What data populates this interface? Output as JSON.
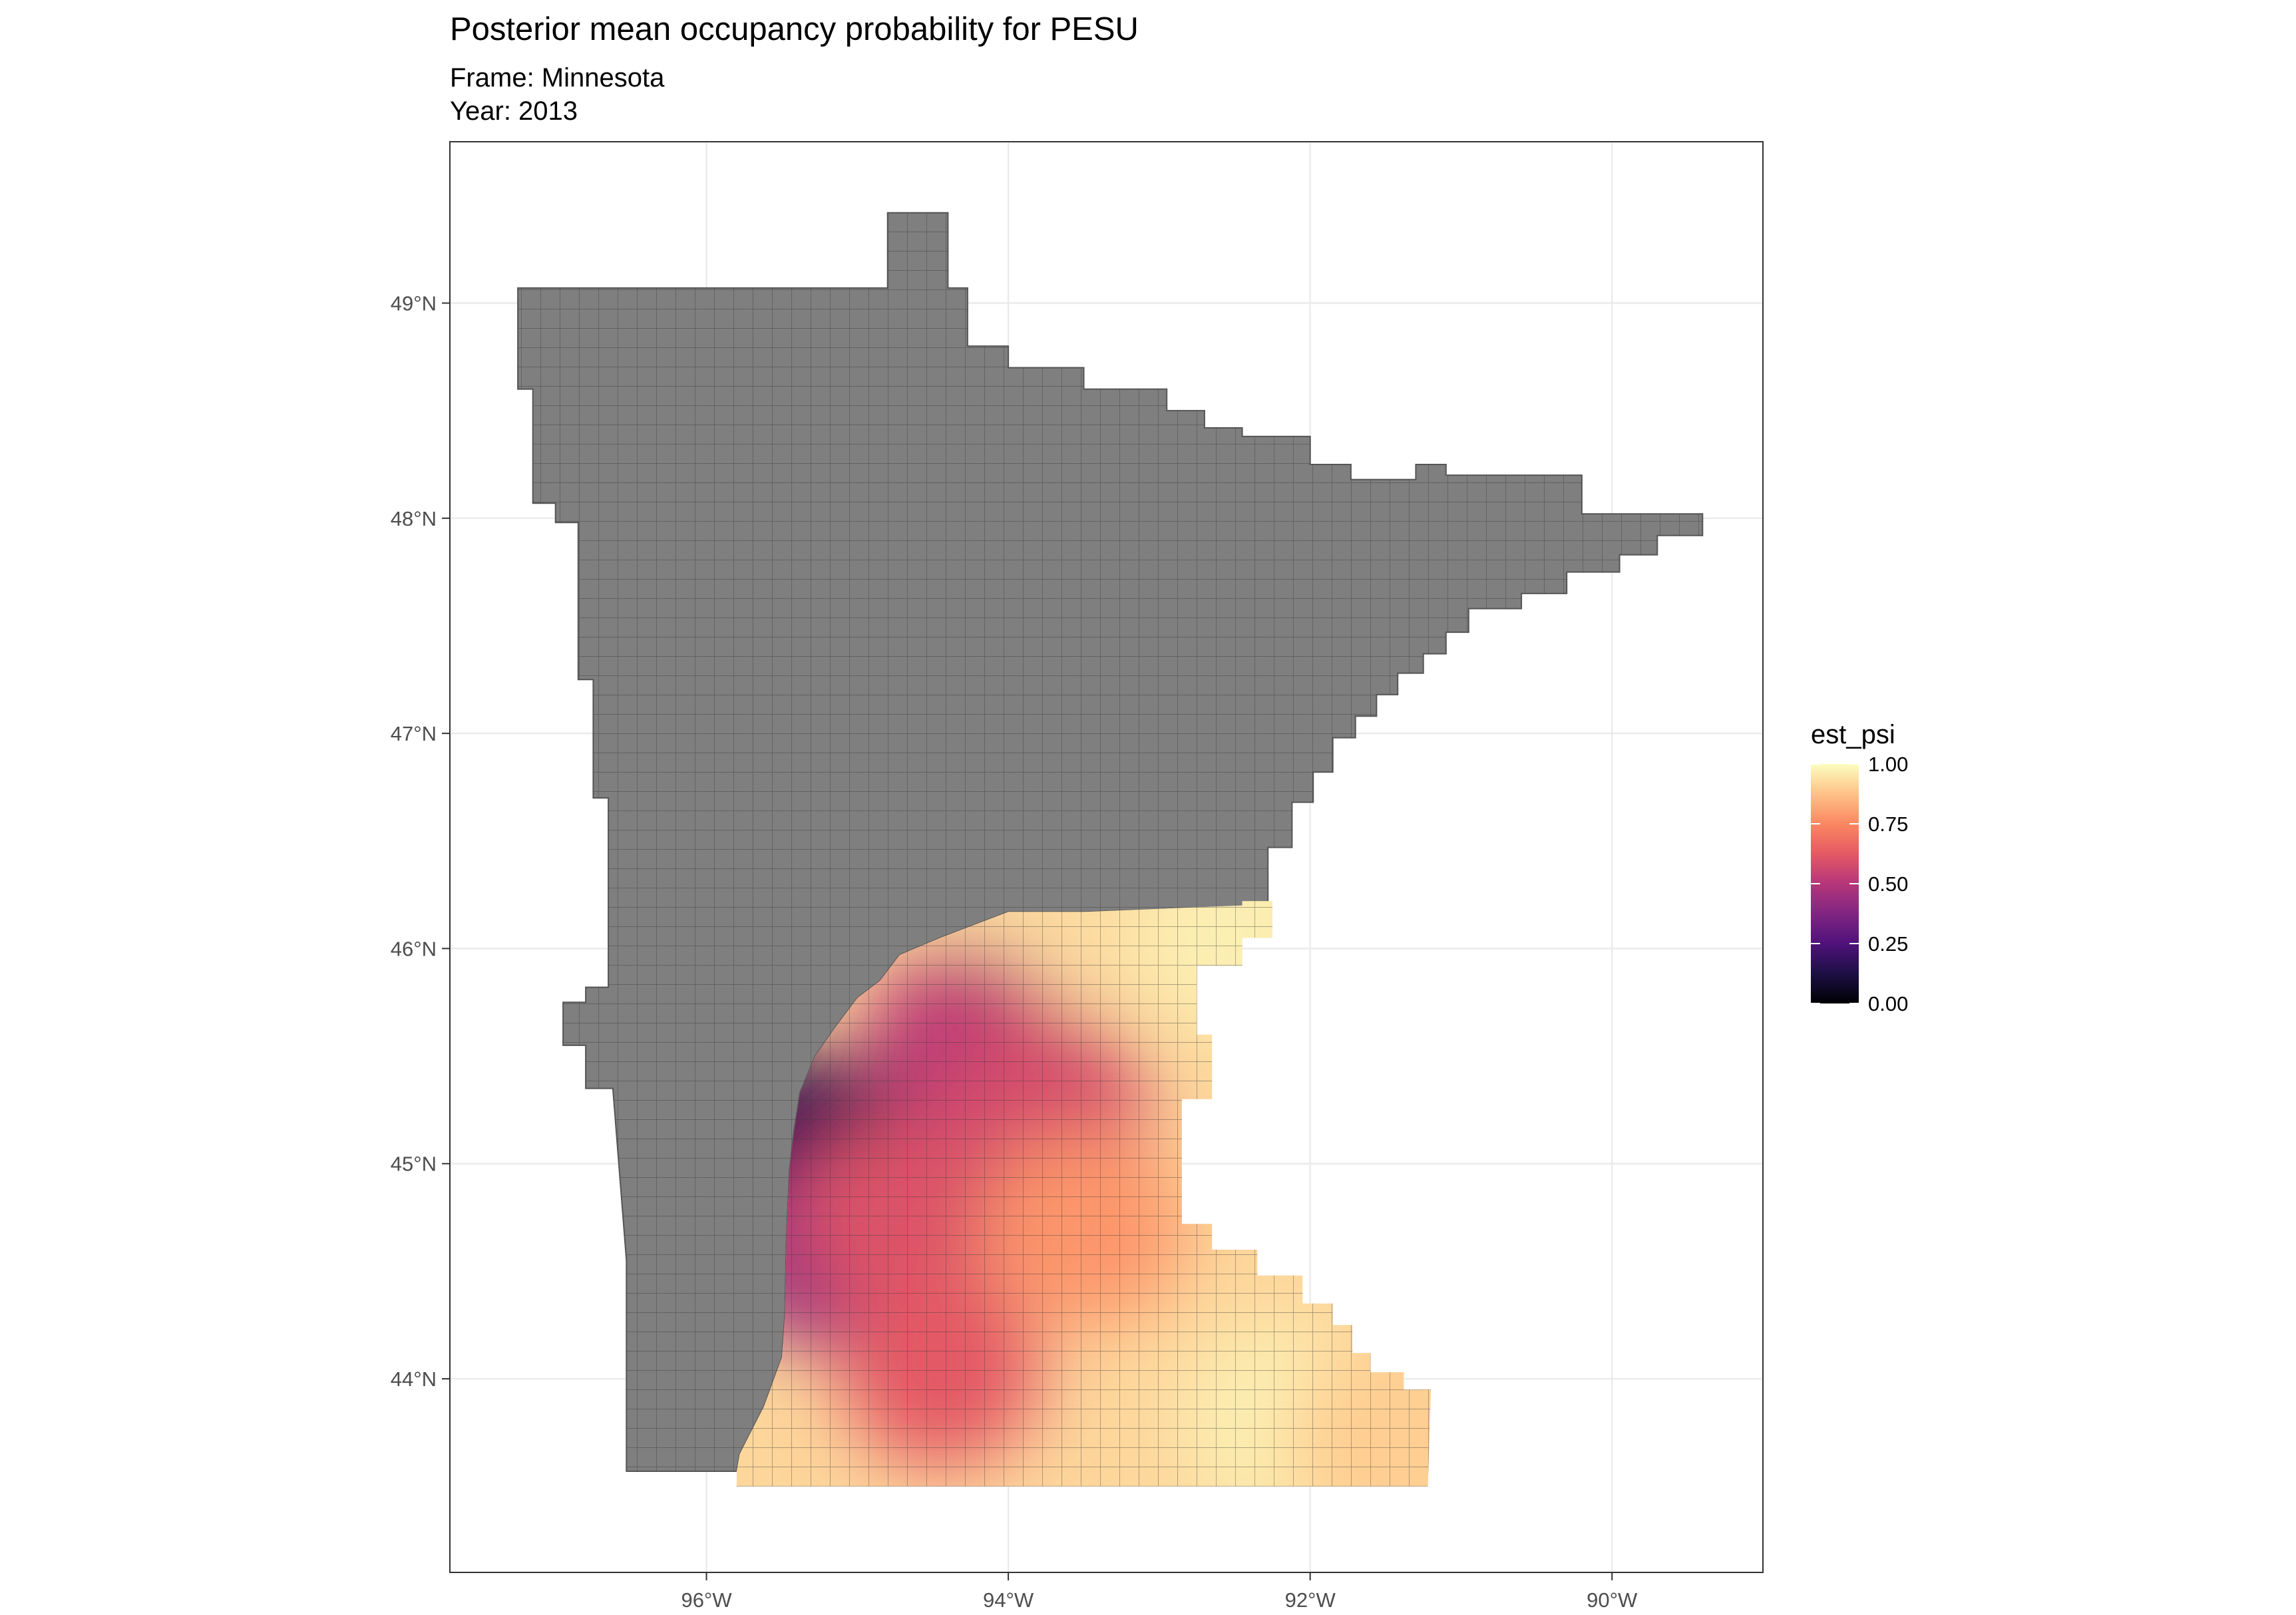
{
  "title": "Posterior mean occupancy probability for PESU",
  "subtitle_frame": "Frame: Minnesota",
  "subtitle_year": "Year: 2013",
  "chart_data": {
    "type": "map",
    "x_ticks": [
      {
        "value": -96,
        "label": "96°W"
      },
      {
        "value": -94,
        "label": "94°W"
      },
      {
        "value": -92,
        "label": "92°W"
      },
      {
        "value": -90,
        "label": "90°W"
      }
    ],
    "y_ticks": [
      {
        "value": 44,
        "label": "44°N"
      },
      {
        "value": 45,
        "label": "45°N"
      },
      {
        "value": 46,
        "label": "46°N"
      },
      {
        "value": 47,
        "label": "47°N"
      },
      {
        "value": 48,
        "label": "48°N"
      },
      {
        "value": 49,
        "label": "49°N"
      }
    ],
    "xlim": [
      -97.7,
      -89.0
    ],
    "ylim": [
      43.1,
      49.75
    ],
    "grid": true,
    "na_fill_color": "#7f7f7f",
    "colormap": "magma",
    "legend": {
      "title": "est_psi",
      "placement": "right",
      "ticks": [
        {
          "value": 1.0,
          "label": "1.00"
        },
        {
          "value": 0.75,
          "label": "0.75"
        },
        {
          "value": 0.5,
          "label": "0.50"
        },
        {
          "value": 0.25,
          "label": "0.25"
        },
        {
          "value": 0.0,
          "label": "0.00"
        }
      ]
    },
    "grey_region_no_estimate": [
      [
        -97.25,
        49.07
      ],
      [
        -94.8,
        49.07
      ],
      [
        -94.8,
        49.42
      ],
      [
        -94.4,
        49.42
      ],
      [
        -94.4,
        49.07
      ],
      [
        -94.27,
        49.07
      ],
      [
        -94.27,
        48.8
      ],
      [
        -94.0,
        48.8
      ],
      [
        -94.0,
        48.7
      ],
      [
        -93.5,
        48.7
      ],
      [
        -93.5,
        48.6
      ],
      [
        -92.95,
        48.6
      ],
      [
        -92.95,
        48.5
      ],
      [
        -92.7,
        48.5
      ],
      [
        -92.7,
        48.42
      ],
      [
        -92.45,
        48.42
      ],
      [
        -92.45,
        48.38
      ],
      [
        -92.0,
        48.38
      ],
      [
        -92.0,
        48.25
      ],
      [
        -91.73,
        48.25
      ],
      [
        -91.73,
        48.18
      ],
      [
        -91.52,
        48.18
      ],
      [
        -91.52,
        48.18
      ],
      [
        -91.3,
        48.18
      ],
      [
        -91.3,
        48.25
      ],
      [
        -91.1,
        48.25
      ],
      [
        -91.1,
        48.2
      ],
      [
        -90.2,
        48.2
      ],
      [
        -90.2,
        48.02
      ],
      [
        -89.4,
        48.02
      ],
      [
        -89.4,
        47.92
      ],
      [
        -89.7,
        47.92
      ],
      [
        -89.7,
        47.83
      ],
      [
        -89.95,
        47.83
      ],
      [
        -89.95,
        47.75
      ],
      [
        -90.3,
        47.75
      ],
      [
        -90.3,
        47.65
      ],
      [
        -90.6,
        47.65
      ],
      [
        -90.6,
        47.58
      ],
      [
        -90.95,
        47.58
      ],
      [
        -90.95,
        47.47
      ],
      [
        -91.1,
        47.47
      ],
      [
        -91.1,
        47.37
      ],
      [
        -91.25,
        47.37
      ],
      [
        -91.25,
        47.28
      ],
      [
        -91.42,
        47.28
      ],
      [
        -91.42,
        47.18
      ],
      [
        -91.56,
        47.18
      ],
      [
        -91.56,
        47.08
      ],
      [
        -91.7,
        47.08
      ],
      [
        -91.7,
        46.98
      ],
      [
        -91.85,
        46.98
      ],
      [
        -91.85,
        46.82
      ],
      [
        -91.98,
        46.82
      ],
      [
        -91.98,
        46.68
      ],
      [
        -92.12,
        46.68
      ],
      [
        -92.12,
        46.47
      ],
      [
        -92.28,
        46.47
      ],
      [
        -92.28,
        46.2
      ],
      [
        -93.5,
        46.17
      ],
      [
        -94.0,
        46.17
      ],
      [
        -94.45,
        46.05
      ],
      [
        -94.72,
        45.97
      ],
      [
        -94.85,
        45.85
      ],
      [
        -95.0,
        45.77
      ],
      [
        -95.15,
        45.63
      ],
      [
        -95.28,
        45.5
      ],
      [
        -95.38,
        45.33
      ],
      [
        -95.42,
        45.15
      ],
      [
        -95.45,
        44.97
      ],
      [
        -95.47,
        44.65
      ],
      [
        -95.48,
        44.3
      ],
      [
        -95.5,
        44.1
      ],
      [
        -95.62,
        43.87
      ],
      [
        -95.78,
        43.65
      ],
      [
        -95.8,
        43.57
      ],
      [
        -96.53,
        43.57
      ],
      [
        -96.53,
        44.55
      ],
      [
        -96.62,
        45.35
      ],
      [
        -96.8,
        45.35
      ],
      [
        -96.8,
        45.55
      ],
      [
        -96.95,
        45.55
      ],
      [
        -96.95,
        45.75
      ],
      [
        -96.8,
        45.75
      ],
      [
        -96.8,
        45.82
      ],
      [
        -96.65,
        45.82
      ],
      [
        -96.65,
        46.7
      ],
      [
        -96.75,
        46.7
      ],
      [
        -96.75,
        47.25
      ],
      [
        -96.85,
        47.25
      ],
      [
        -96.85,
        47.98
      ],
      [
        -97.0,
        47.98
      ],
      [
        -97.0,
        48.07
      ],
      [
        -97.15,
        48.07
      ],
      [
        -97.15,
        48.6
      ],
      [
        -97.25,
        48.6
      ]
    ],
    "colored_region_estimated": [
      [
        -95.5,
        44.1
      ],
      [
        -95.48,
        44.3
      ],
      [
        -95.47,
        44.65
      ],
      [
        -95.45,
        44.97
      ],
      [
        -95.42,
        45.15
      ],
      [
        -95.38,
        45.33
      ],
      [
        -95.28,
        45.5
      ],
      [
        -95.15,
        45.63
      ],
      [
        -95.0,
        45.77
      ],
      [
        -94.85,
        45.85
      ],
      [
        -94.72,
        45.97
      ],
      [
        -94.45,
        46.05
      ],
      [
        -94.0,
        46.17
      ],
      [
        -93.5,
        46.17
      ],
      [
        -92.45,
        46.2
      ],
      [
        -92.45,
        46.22
      ],
      [
        -92.25,
        46.22
      ],
      [
        -92.25,
        46.05
      ],
      [
        -92.45,
        46.05
      ],
      [
        -92.45,
        45.92
      ],
      [
        -92.75,
        45.92
      ],
      [
        -92.75,
        45.6
      ],
      [
        -92.65,
        45.6
      ],
      [
        -92.65,
        45.3
      ],
      [
        -92.85,
        45.3
      ],
      [
        -92.85,
        44.72
      ],
      [
        -92.65,
        44.72
      ],
      [
        -92.65,
        44.6
      ],
      [
        -92.35,
        44.6
      ],
      [
        -92.35,
        44.48
      ],
      [
        -92.05,
        44.48
      ],
      [
        -92.05,
        44.35
      ],
      [
        -91.85,
        44.35
      ],
      [
        -91.85,
        44.25
      ],
      [
        -91.72,
        44.25
      ],
      [
        -91.72,
        44.12
      ],
      [
        -91.6,
        44.12
      ],
      [
        -91.6,
        44.03
      ],
      [
        -91.38,
        44.03
      ],
      [
        -91.38,
        43.95
      ],
      [
        -91.2,
        43.95
      ],
      [
        -91.22,
        43.5
      ],
      [
        -91.6,
        43.5
      ],
      [
        -92.1,
        43.5
      ],
      [
        -93.5,
        43.5
      ],
      [
        -95.8,
        43.5
      ],
      [
        -95.8,
        43.57
      ],
      [
        -95.78,
        43.65
      ],
      [
        -95.62,
        43.87
      ]
    ],
    "estimate_field_centers": [
      {
        "lon": -93.8,
        "lat": 46.0,
        "est_psi": 0.93
      },
      {
        "lon": -92.5,
        "lat": 46.05,
        "est_psi": 0.97
      },
      {
        "lon": -94.3,
        "lat": 45.55,
        "est_psi": 0.52
      },
      {
        "lon": -93.75,
        "lat": 45.25,
        "est_psi": 0.58
      },
      {
        "lon": -95.33,
        "lat": 45.05,
        "est_psi": 0.15
      },
      {
        "lon": -95.2,
        "lat": 44.6,
        "est_psi": 0.42
      },
      {
        "lon": -94.75,
        "lat": 44.75,
        "est_psi": 0.6
      },
      {
        "lon": -94.45,
        "lat": 44.05,
        "est_psi": 0.62
      },
      {
        "lon": -93.5,
        "lat": 44.7,
        "est_psi": 0.78
      },
      {
        "lon": -92.2,
        "lat": 43.8,
        "est_psi": 0.97
      },
      {
        "lon": -91.5,
        "lat": 43.7,
        "est_psi": 0.9
      }
    ]
  }
}
